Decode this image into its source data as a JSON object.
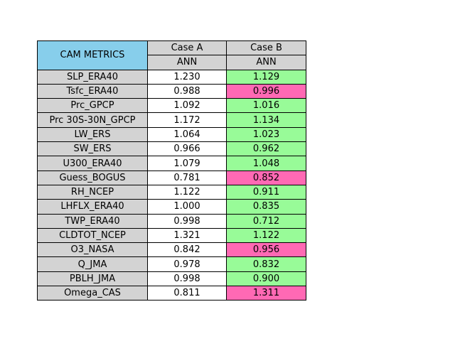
{
  "chart_data": {
    "type": "table",
    "corner_label": "CAM METRICS",
    "columns": [
      {
        "case": "Case A",
        "period": "ANN"
      },
      {
        "case": "Case B",
        "period": "ANN"
      }
    ],
    "rows": [
      {
        "metric": "SLP_ERA40",
        "values": [
          "1.230",
          "1.129"
        ]
      },
      {
        "metric": "Tsfc_ERA40",
        "values": [
          "0.988",
          "0.996"
        ]
      },
      {
        "metric": "Prc_GPCP",
        "values": [
          "1.092",
          "1.016"
        ]
      },
      {
        "metric": "Prc 30S-30N_GPCP",
        "values": [
          "1.172",
          "1.134"
        ]
      },
      {
        "metric": "LW_ERS",
        "values": [
          "1.064",
          "1.023"
        ]
      },
      {
        "metric": "SW_ERS",
        "values": [
          "0.966",
          "0.962"
        ]
      },
      {
        "metric": "U300_ERA40",
        "values": [
          "1.079",
          "1.048"
        ]
      },
      {
        "metric": "Guess_BOGUS",
        "values": [
          "0.781",
          "0.852"
        ]
      },
      {
        "metric": "RH_NCEP",
        "values": [
          "1.122",
          "0.911"
        ]
      },
      {
        "metric": "LHFLX_ERA40",
        "values": [
          "1.000",
          "0.835"
        ]
      },
      {
        "metric": "TWP_ERA40",
        "values": [
          "0.998",
          "0.712"
        ]
      },
      {
        "metric": "CLDTOT_NCEP",
        "values": [
          "1.321",
          "1.122"
        ]
      },
      {
        "metric": "O3_NASA",
        "values": [
          "0.842",
          "0.956"
        ]
      },
      {
        "metric": "Q_JMA",
        "values": [
          "0.978",
          "0.832"
        ]
      },
      {
        "metric": "PBLH_JMA",
        "values": [
          "0.998",
          "0.900"
        ]
      },
      {
        "metric": "Omega_CAS",
        "values": [
          "0.811",
          "1.311"
        ]
      }
    ],
    "colors": {
      "header": "#87ceeb",
      "label_cell": "#d3d3d3",
      "better": "#98fb98",
      "worse": "#ff69b4",
      "baseline": "#ffffff"
    }
  }
}
